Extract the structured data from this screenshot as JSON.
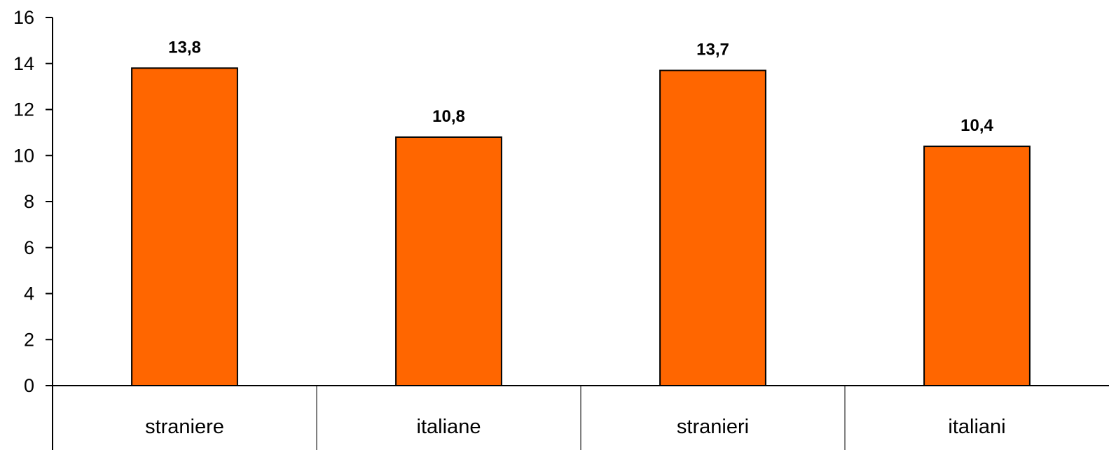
{
  "chart_data": {
    "type": "bar",
    "categories": [
      "straniere",
      "italiane",
      "stranieri",
      "italiani"
    ],
    "values": [
      13.8,
      10.8,
      13.7,
      10.4
    ],
    "data_labels": [
      "13,8",
      "10,8",
      "13,7",
      "10,4"
    ],
    "ylim": [
      0,
      16
    ],
    "yticks": [
      0,
      2,
      4,
      6,
      8,
      10,
      12,
      14,
      16
    ],
    "title": "",
    "xlabel": "",
    "ylabel": "",
    "grid": false,
    "legend": "none",
    "colors": {
      "bar_fill": "#FF6600",
      "bar_stroke": "#000000",
      "axis": "#000000",
      "background": "#FFFFFF"
    }
  }
}
